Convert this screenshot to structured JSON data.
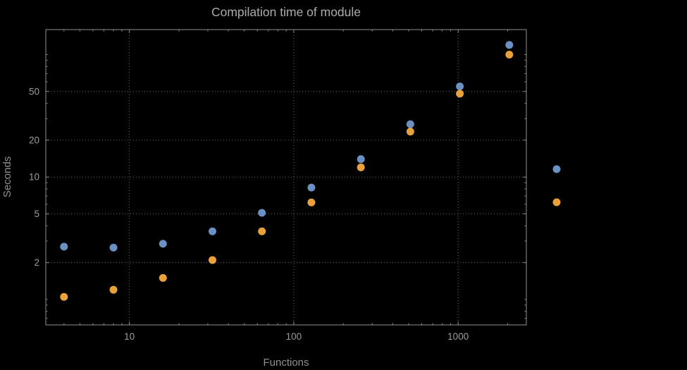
{
  "chart_data": {
    "type": "scatter",
    "title": "Compilation time of module",
    "xlabel": "Functions",
    "ylabel": "Seconds",
    "x_scale": "log",
    "y_scale": "log",
    "grid": "dotted",
    "legend_position": "right",
    "xlim": [
      3.1,
      2600
    ],
    "ylim": [
      0.62,
      160
    ],
    "x_ticks": [
      10,
      100,
      1000
    ],
    "x_tick_labels": [
      "10",
      "100",
      "1000"
    ],
    "y_ticks": [
      2,
      5,
      10,
      20,
      50
    ],
    "y_tick_labels": [
      "2",
      "5",
      "10",
      "20",
      "50"
    ],
    "x": [
      4,
      8,
      16,
      32,
      64,
      128,
      256,
      512,
      1024,
      2048
    ],
    "series": [
      {
        "name": "blue",
        "color": "#6b90c4",
        "values": [
          2.7,
          2.65,
          2.85,
          3.6,
          5.1,
          8.2,
          14,
          27,
          55,
          120
        ]
      },
      {
        "name": "orange",
        "color": "#e9a13b",
        "values": [
          1.05,
          1.2,
          1.5,
          2.1,
          3.6,
          6.2,
          12,
          23.5,
          48,
          100
        ]
      }
    ]
  },
  "style": {
    "background": "#000000",
    "title_color": "#ababab",
    "axis_label_color": "#8f8f8f",
    "tick_label_color": "#9c9c9c",
    "frame_color": "#8f8f8f",
    "grid_color": "#666666"
  }
}
